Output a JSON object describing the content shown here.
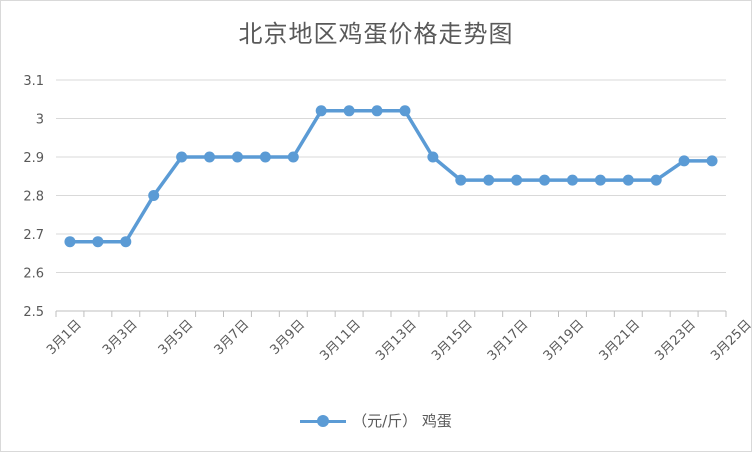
{
  "chart_data": {
    "type": "line",
    "title": "北京地区鸡蛋价格走势图",
    "xlabel": "",
    "ylabel": "",
    "ylim": [
      2.5,
      3.1
    ],
    "yticks": [
      "2.5",
      "2.6",
      "2.7",
      "2.8",
      "2.9",
      "3",
      "3.1"
    ],
    "xticks": [
      "3月1日",
      "3月3日",
      "3月5日",
      "3月7日",
      "3月9日",
      "3月11日",
      "3月13日",
      "3月15日",
      "3月17日",
      "3月19日",
      "3月21日",
      "3月23日",
      "3月25日"
    ],
    "grid": true,
    "legend_position": "bottom",
    "series": [
      {
        "name": "（元/斤） 鸡蛋",
        "color": "#5b9bd5",
        "values": [
          2.68,
          2.68,
          2.68,
          2.8,
          2.9,
          2.9,
          2.9,
          2.9,
          2.9,
          3.02,
          3.02,
          3.02,
          3.02,
          2.9,
          2.84,
          2.84,
          2.84,
          2.84,
          2.84,
          2.84,
          2.84,
          2.84,
          2.89,
          2.89
        ]
      }
    ]
  }
}
